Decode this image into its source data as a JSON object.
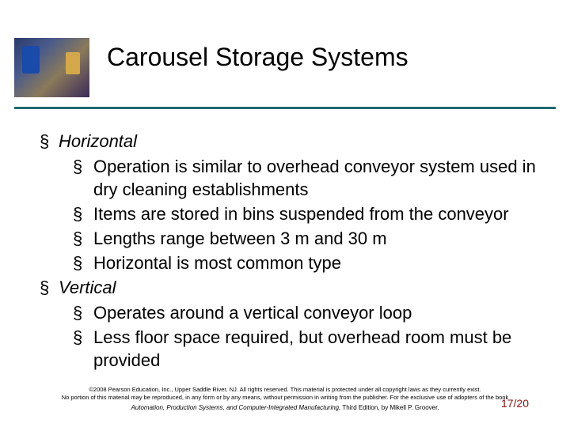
{
  "colors": {
    "rule": "#1d6a73",
    "pagenum": "#8a1616"
  },
  "slide": {
    "title": "Carousel Storage Systems"
  },
  "bullets": {
    "top": [
      {
        "label": "Horizontal",
        "sub": [
          "Operation is similar to overhead conveyor system used in dry cleaning establishments",
          "Items are stored in bins suspended from the conveyor",
          "Lengths range between 3 m and 30 m",
          "Horizontal is most common type"
        ]
      },
      {
        "label": "Vertical",
        "sub": [
          "Operates around a vertical conveyor loop",
          "Less floor space required, but overhead room must be provided"
        ]
      }
    ]
  },
  "footer": {
    "copyright1": "©2008 Pearson Education, Inc., Upper Saddle River, NJ. All rights reserved. This material is protected under all copyright laws as they currently exist.",
    "copyright2": "No portion of this material may be reproduced, in any form or by any means, without permission in writing from the publisher. For the exclusive use of adopters of the book",
    "book_italic": "Automation, Production Systems, and Computer-Integrated Manufacturing,",
    "book_rest": " Third Edition, by Mikell P. Groover."
  },
  "page": {
    "current": 17,
    "total": 20,
    "display": "17/20"
  }
}
